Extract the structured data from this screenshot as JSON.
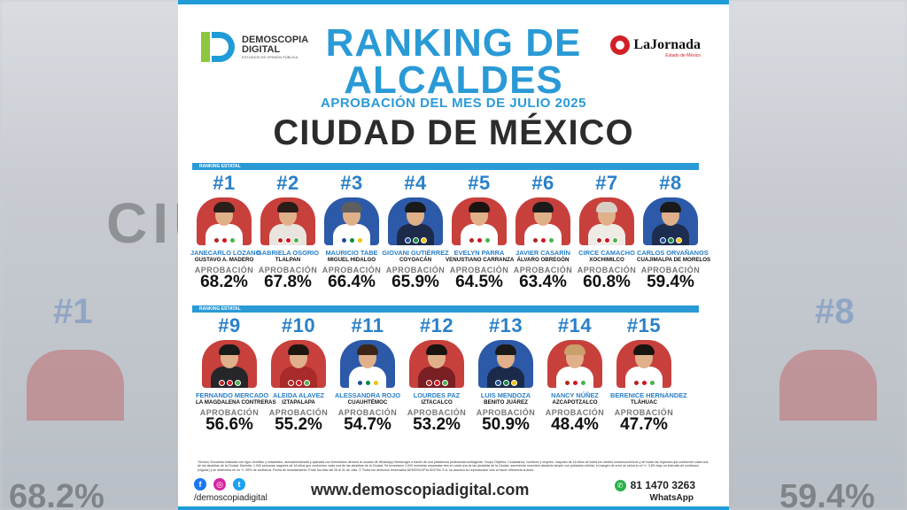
{
  "logo_left": {
    "name": "DEMOSCOPIA",
    "name2": "DIGITAL",
    "tagline": "ESTUDIOS DE OPINIÓN PÚBLICA"
  },
  "logo_right": {
    "name": "LaJornada",
    "tagline": "Estado de México"
  },
  "title": "RANKING DE\nALCALDES",
  "subtitle": "APROBACIÓN DEL MES DE JULIO 2025",
  "city": "CIUDAD DE MÉXICO",
  "band_label": "RANKING ESTATAL",
  "approval_label": "APROBACIÓN",
  "colors": {
    "accent": "#2a9ad6",
    "rank": "#2a80c9",
    "morena": "#b5261e",
    "pan": "#1c4f9c",
    "pri": "#0b8a3e",
    "prd": "#f2c300",
    "mc": "#f07f1a",
    "pvem": "#4ab24a",
    "pt": "#d7141e"
  },
  "candidates": [
    {
      "rank": "#1",
      "name": "JANECARLO LOZANO",
      "place": "GUSTAVO A. MADERO",
      "pct": "68.2%",
      "bg": "#c8403c",
      "hair": "#2b1f1a",
      "suit": "#ffffff"
    },
    {
      "rank": "#2",
      "name": "GABRIELA OSORIO",
      "place": "TLALPAN",
      "pct": "67.8%",
      "bg": "#c8403c",
      "hair": "#2a1d18",
      "suit": "#e9e4de"
    },
    {
      "rank": "#3",
      "name": "MAURICIO TABE",
      "place": "MIGUEL HIDALGO",
      "pct": "66.4%",
      "bg": "#2d5aa8",
      "hair": "#5e5e5e",
      "suit": "#ffffff"
    },
    {
      "rank": "#4",
      "name": "GIOVANI GUTIÉRREZ",
      "place": "COYOACÁN",
      "pct": "65.9%",
      "bg": "#2d5aa8",
      "hair": "#1a1a1a",
      "suit": "#1d2a4a"
    },
    {
      "rank": "#5",
      "name": "EVELYN PARRA",
      "place": "VENUSTIANO CARRANZA",
      "pct": "64.5%",
      "bg": "#c8403c",
      "hair": "#1c1410",
      "suit": "#ffffff"
    },
    {
      "rank": "#6",
      "name": "JAVIER CASARÍN",
      "place": "ÁLVARO OBREGÓN",
      "pct": "63.4%",
      "bg": "#c8403c",
      "hair": "#1b1b1b",
      "suit": "#ffffff"
    },
    {
      "rank": "#7",
      "name": "CIRCE CAMACHO",
      "place": "XOCHIMILCO",
      "pct": "60.8%",
      "bg": "#c8403c",
      "hair": "#d8cfc4",
      "suit": "#efeae4"
    },
    {
      "rank": "#8",
      "name": "CARLOS ORVAÑANOS",
      "place": "CUAJIMALPA DE MORELOS",
      "pct": "59.4%",
      "bg": "#2d5aa8",
      "hair": "#1a1a1a",
      "suit": "#1c2d50"
    },
    {
      "rank": "#9",
      "name": "FERNANDO MERCADO",
      "place": "LA MAGDALENA CONTRERAS",
      "pct": "56.6%",
      "bg": "#c8403c",
      "hair": "#1a1a1a",
      "suit": "#25252a"
    },
    {
      "rank": "#10",
      "name": "ALEIDA ALAVEZ",
      "place": "IZTAPALAPA",
      "pct": "55.2%",
      "bg": "#c8403c",
      "hair": "#1e1511",
      "suit": "#a82a2a"
    },
    {
      "rank": "#11",
      "name": "ALESSANDRA ROJO",
      "place": "CUAUHTÉMOC",
      "pct": "54.7%",
      "bg": "#2d5aa8",
      "hair": "#3a2518",
      "suit": "#ffffff"
    },
    {
      "rank": "#12",
      "name": "LOURDES PAZ",
      "place": "IZTACALCO",
      "pct": "53.2%",
      "bg": "#c8403c",
      "hair": "#1a1410",
      "suit": "#7a1f24"
    },
    {
      "rank": "#13",
      "name": "LUIS MENDOZA",
      "place": "BENITO JUÁREZ",
      "pct": "50.9%",
      "bg": "#2d5aa8",
      "hair": "#1a1a1a",
      "suit": "#1c2a4a"
    },
    {
      "rank": "#14",
      "name": "NANCY NÚÑEZ",
      "place": "AZCAPOTZALCO",
      "pct": "48.4%",
      "bg": "#c8403c",
      "hair": "#c9a06a",
      "suit": "#ffffff"
    },
    {
      "rank": "#15",
      "name": "BERENICE HERNÁNDEZ",
      "place": "TLÁHUAC",
      "pct": "47.7%",
      "bg": "#c8403c",
      "hair": "#1a1410",
      "suit": "#ffffff"
    }
  ],
  "fine_print": "Técnica: Encuesta realizada con rigor científico y estadístico, autoadministrada y aplicada con formularios directos al usuario de WhatsApp Messenger a través de una plataforma profesional multiagente. Grupo Objetivo: Ciudadanos, hombres y mujeres, mayores de 18 años de todos los niveles socioeconómicos y de todas las regiones que conformen cada una de las alcaldías de la Ciudad. Muestra: 1,000 personas mayores de 18 años que conformen cada una de las alcaldías de la Ciudad. Se levantaron 1,000 muestras separadas tres en cada una de las alcaldías de la Ciudad, asumiendo muestreo aleatorio simple con población infinita, el margen de error se ubica en el +/- 3.8% bajo un intervalo de confianza (regular) y se determina en un +/- 95% de confianza. Fecha de levantamiento: Entre los días del 28 al 31 de Julio. © Todos los derechos reservados DEMOSCOPIA DIGITAL S.A. se autoriza su reproducción sólo al hacer referencia al autor.",
  "footer": {
    "handle": "/demoscopiadigital",
    "website": "www.demoscopiadigital.com",
    "phone": "81 1470 3263",
    "whatsapp_label": "WhatsApp"
  }
}
